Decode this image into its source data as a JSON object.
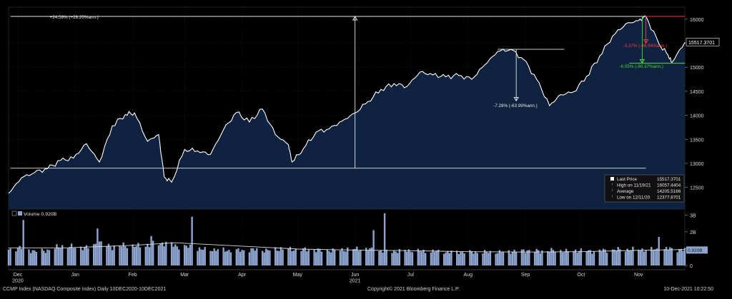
{
  "chart_data": {
    "type": "area",
    "title": "",
    "price_series": {
      "name": "Last Price",
      "dates": [
        "2020-12-10",
        "2020-12-17",
        "2020-12-24",
        "2020-12-31",
        "2021-01-07",
        "2021-01-14",
        "2021-01-21",
        "2021-01-28",
        "2021-02-04",
        "2021-02-11",
        "2021-02-16",
        "2021-02-23",
        "2021-03-01",
        "2021-03-04",
        "2021-03-08",
        "2021-03-15",
        "2021-03-22",
        "2021-03-29",
        "2021-04-05",
        "2021-04-12",
        "2021-04-19",
        "2021-04-26",
        "2021-05-03",
        "2021-05-10",
        "2021-05-12",
        "2021-05-18",
        "2021-05-25",
        "2021-06-01",
        "2021-06-08",
        "2021-06-15",
        "2021-06-22",
        "2021-06-29",
        "2021-07-06",
        "2021-07-13",
        "2021-07-20",
        "2021-07-27",
        "2021-08-03",
        "2021-08-10",
        "2021-08-17",
        "2021-08-24",
        "2021-08-31",
        "2021-09-07",
        "2021-09-14",
        "2021-09-21",
        "2021-09-28",
        "2021-10-04",
        "2021-10-11",
        "2021-10-18",
        "2021-10-25",
        "2021-11-01",
        "2021-11-08",
        "2021-11-15",
        "2021-11-19",
        "2021-11-26",
        "2021-12-01",
        "2021-12-03",
        "2021-12-10"
      ],
      "values": [
        12378,
        12700,
        12810,
        12890,
        13060,
        13110,
        13410,
        13030,
        13780,
        14020,
        14050,
        13460,
        13600,
        12720,
        12610,
        13290,
        13260,
        13190,
        13700,
        14060,
        13860,
        14130,
        13600,
        13390,
        13030,
        13300,
        13650,
        13720,
        13880,
        14050,
        14290,
        14540,
        14660,
        14600,
        14900,
        14840,
        14800,
        14830,
        14750,
        15050,
        15330,
        15370,
        15160,
        14750,
        14200,
        14430,
        14490,
        14810,
        15230,
        15650,
        15900,
        15970,
        16057,
        15490,
        15250,
        15100,
        15517
      ]
    },
    "volume_series": {
      "name": "Volume",
      "unit": "B",
      "dates": [
        "2020-12-10",
        "2020-12-17",
        "2020-12-24",
        "2020-12-31",
        "2021-01-07",
        "2021-01-14",
        "2021-01-21",
        "2021-01-28",
        "2021-02-04",
        "2021-02-11",
        "2021-02-18",
        "2021-02-25",
        "2021-03-04",
        "2021-03-11",
        "2021-03-18",
        "2021-03-25",
        "2021-04-01",
        "2021-04-08",
        "2021-04-15",
        "2021-04-22",
        "2021-04-29",
        "2021-05-06",
        "2021-05-13",
        "2021-05-20",
        "2021-05-27",
        "2021-06-03",
        "2021-06-10",
        "2021-06-17",
        "2021-06-24",
        "2021-07-01",
        "2021-07-08",
        "2021-07-15",
        "2021-07-22",
        "2021-07-29",
        "2021-08-05",
        "2021-08-12",
        "2021-08-19",
        "2021-08-26",
        "2021-09-02",
        "2021-09-09",
        "2021-09-16",
        "2021-09-23",
        "2021-09-30",
        "2021-10-07",
        "2021-10-14",
        "2021-10-21",
        "2021-10-28",
        "2021-11-04",
        "2021-11-11",
        "2021-11-18",
        "2021-11-25",
        "2021-12-02",
        "2021-12-10"
      ],
      "values": [
        0.95,
        1.05,
        0.85,
        0.9,
        1.15,
        1.1,
        1.05,
        1.35,
        1.1,
        1.2,
        1.15,
        1.25,
        1.35,
        1.15,
        1.1,
        0.95,
        0.95,
        0.9,
        0.9,
        0.95,
        0.9,
        1.0,
        0.95,
        0.95,
        0.9,
        0.9,
        0.95,
        1.0,
        0.95,
        0.85,
        0.85,
        0.9,
        0.85,
        0.85,
        0.8,
        0.8,
        0.8,
        0.8,
        0.8,
        0.85,
        0.9,
        0.85,
        0.9,
        0.85,
        0.9,
        0.85,
        0.9,
        0.95,
        0.95,
        0.95,
        0.95,
        1.0,
        0.92
      ]
    },
    "volume_spikes": [
      {
        "date": "2020-12-18",
        "value": 2.7
      },
      {
        "date": "2021-01-27",
        "value": 2.2
      },
      {
        "date": "2021-02-25",
        "value": 1.75
      },
      {
        "date": "2021-03-19",
        "value": 2.9
      },
      {
        "date": "2021-06-25",
        "value": 2.1
      },
      {
        "date": "2021-07-01",
        "value": 3.1
      },
      {
        "date": "2021-11-26",
        "value": 1.7
      }
    ],
    "volume_average": [
      {
        "date": "2020-12-10",
        "value": 1.05
      },
      {
        "date": "2021-01-10",
        "value": 1.05
      },
      {
        "date": "2021-02-15",
        "value": 1.2
      },
      {
        "date": "2021-03-10",
        "value": 1.35
      },
      {
        "date": "2021-04-15",
        "value": 1.15
      },
      {
        "date": "2021-05-15",
        "value": 0.98
      },
      {
        "date": "2021-06-15",
        "value": 0.92
      },
      {
        "date": "2021-07-15",
        "value": 0.88
      },
      {
        "date": "2021-08-15",
        "value": 0.82
      },
      {
        "date": "2021-09-15",
        "value": 0.8
      },
      {
        "date": "2021-10-15",
        "value": 0.82
      },
      {
        "date": "2021-11-15",
        "value": 0.9
      },
      {
        "date": "2021-12-10",
        "value": 0.95
      }
    ],
    "x_range": [
      "2020-12-10",
      "2021-12-10"
    ],
    "price_ylim": [
      12050,
      16250
    ],
    "price_yticks": [
      12500,
      13000,
      13500,
      14000,
      14500,
      15000,
      15500,
      16000
    ],
    "volume_ylim": [
      -0.25,
      3.35
    ],
    "volume_yticks": [
      {
        "value": 3,
        "label": "3B"
      },
      {
        "value": 2,
        "label": "2B"
      },
      {
        "value": 1,
        "label": "1B"
      },
      {
        "value": 0,
        "label": "0"
      }
    ],
    "x_ticks": [
      {
        "date": "2020-12-15",
        "label": "Dec"
      },
      {
        "date": "2021-01-15",
        "label": "Jan"
      },
      {
        "date": "2021-02-15",
        "label": "Feb"
      },
      {
        "date": "2021-03-15",
        "label": "Mar"
      },
      {
        "date": "2021-04-15",
        "label": "Apr"
      },
      {
        "date": "2021-05-15",
        "label": "May"
      },
      {
        "date": "2021-06-15",
        "label": "Jun"
      },
      {
        "date": "2021-07-15",
        "label": "Jul"
      },
      {
        "date": "2021-08-15",
        "label": "Aug"
      },
      {
        "date": "2021-09-15",
        "label": "Sep"
      },
      {
        "date": "2021-10-15",
        "label": "Oct"
      },
      {
        "date": "2021-11-15",
        "label": "Nov"
      }
    ],
    "year_labels": [
      {
        "date": "2020-12-15",
        "label": "2020"
      },
      {
        "date": "2021-06-15",
        "label": "2021"
      }
    ],
    "last_price_tag": "15517.3701",
    "volume_tag": "0.920B",
    "volume_legend": "Volume 0.920B",
    "legend": {
      "rows": [
        {
          "label": "Last Price",
          "value": "15517.3701"
        },
        {
          "label": "High on 11/19/21",
          "value": "16057.4404"
        },
        {
          "label": "Average",
          "value": "14205.5166"
        },
        {
          "label": "Low on 12/11/20",
          "value": "12377.8701"
        }
      ]
    },
    "annotations": [
      {
        "type": "hline",
        "date_from": "2020-12-11",
        "date_to": "2021-11-19",
        "value": 16057,
        "label": "+24.59% (+28.20%ann.)",
        "color": "#e6e6e6"
      },
      {
        "type": "hline",
        "date_from": "2020-12-11",
        "date_to": "2021-11-19",
        "value": 12900,
        "color": "#e6e6e6"
      },
      {
        "type": "vline",
        "date": "2021-06-15",
        "from": 12900,
        "to": 16057,
        "color": "#e6e6e6",
        "arrow": "up"
      },
      {
        "type": "hline",
        "date_from": "2021-08-31",
        "date_to": "2021-10-06",
        "value": 15374,
        "color": "#e6e6e6"
      },
      {
        "type": "vline",
        "date": "2021-09-10",
        "from": 15374,
        "to": 14300,
        "color": "#e6e6e6",
        "arrow": "down",
        "label": "-7.28% (-63.99%ann.)",
        "label_value": 14200
      },
      {
        "type": "vline",
        "date": "2021-11-19",
        "from": 16057,
        "to": 15500,
        "color": "#ff3b3b",
        "arrow": "down",
        "label": "-3.37% (-46.94%ann.)",
        "label_value": 15450
      },
      {
        "type": "vline",
        "date": "2021-11-17",
        "from": 16057,
        "to": 15085,
        "color": "#3ddc3d",
        "arrow": "down",
        "label": "-6.05% (-80.37%ann.)",
        "label_value": 15020
      },
      {
        "type": "hline",
        "date_from": "2021-11-19",
        "date_to": "2021-12-10",
        "value": 16057,
        "color": "#ff3b3b"
      },
      {
        "type": "hline",
        "date_from": "2021-11-10",
        "date_to": "2021-12-10",
        "value": 15085,
        "color": "#3ddc3d"
      }
    ]
  },
  "footer": {
    "left": "CCMP Index (NASDAQ Composite Index)  Daily 10DEC2020-10DEC2021",
    "center": "Copyright© 2021 Bloomberg Finance L.P.",
    "right": "10-Dec-2021 10:22:50"
  },
  "colors": {
    "area_fill": "#0f2240",
    "price_line": "#ffffff",
    "volume_bar": "#8ea6cf",
    "grid": "#2a2a2a"
  }
}
